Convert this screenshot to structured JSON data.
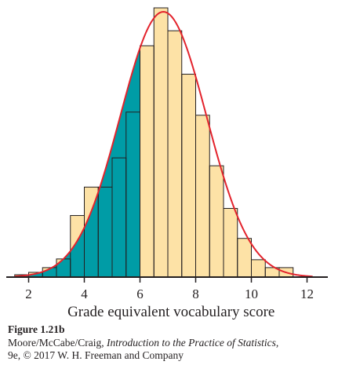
{
  "chart_data": {
    "type": "bar",
    "xlabel": "Grade equivalent vocabulary score",
    "xlim": [
      1.3,
      12.6
    ],
    "xticks": [
      2,
      4,
      6,
      8,
      10,
      12
    ],
    "ylim": [
      0,
      345
    ],
    "bin_width": 0.5,
    "bins": [
      {
        "x0": 1.5,
        "x1": 2.0,
        "value": 3
      },
      {
        "x0": 2.0,
        "x1": 2.5,
        "value": 6
      },
      {
        "x0": 2.5,
        "x1": 3.0,
        "value": 12
      },
      {
        "x0": 3.0,
        "x1": 3.5,
        "value": 23
      },
      {
        "x0": 3.5,
        "x1": 4.0,
        "value": 78
      },
      {
        "x0": 4.0,
        "x1": 4.5,
        "value": 114
      },
      {
        "x0": 4.5,
        "x1": 5.0,
        "value": 114
      },
      {
        "x0": 5.0,
        "x1": 5.5,
        "value": 151
      },
      {
        "x0": 5.5,
        "x1": 6.0,
        "value": 209
      },
      {
        "x0": 6.0,
        "x1": 6.5,
        "value": 293
      },
      {
        "x0": 6.5,
        "x1": 7.0,
        "value": 341
      },
      {
        "x0": 7.0,
        "x1": 7.5,
        "value": 312
      },
      {
        "x0": 7.5,
        "x1": 8.0,
        "value": 257
      },
      {
        "x0": 8.0,
        "x1": 8.5,
        "value": 205
      },
      {
        "x0": 8.5,
        "x1": 9.0,
        "value": 141
      },
      {
        "x0": 9.0,
        "x1": 9.5,
        "value": 87
      },
      {
        "x0": 9.5,
        "x1": 10.0,
        "value": 49
      },
      {
        "x0": 10.0,
        "x1": 10.5,
        "value": 22
      },
      {
        "x0": 10.5,
        "x1": 11.0,
        "value": 12
      },
      {
        "x0": 11.0,
        "x1": 11.5,
        "value": 12
      }
    ],
    "shade_below": 6,
    "normal_curve": {
      "mean": 6.84,
      "sd": 1.55,
      "peak": 336
    },
    "colors": {
      "shaded_fill": "#009ca6",
      "bar_fill": "#fde2a6",
      "bar_edge": "#231f20",
      "curve": "#e3232c",
      "axis": "#231f20"
    }
  },
  "caption": {
    "figure_label": "Figure 1.21b",
    "authors": "Moore/McCabe/Craig, ",
    "book_title": "Introduction to the Practice of Statistics,",
    "edition_line": "9e, © 2017 W. H. Freeman and Company"
  }
}
